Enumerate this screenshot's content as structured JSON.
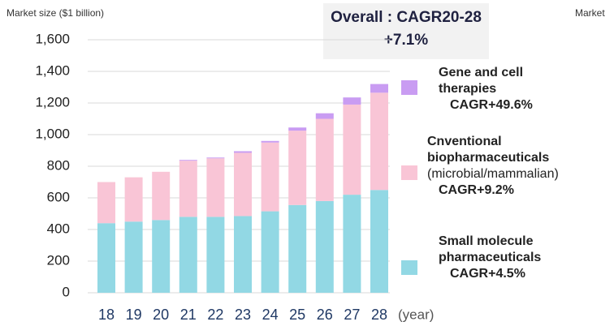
{
  "chart_data": {
    "type": "bar",
    "stacked": true,
    "title": "Overall : CAGR20-28",
    "subtitle": "+7.1%",
    "y_label": "Market size ($1 billion)",
    "x_suffix": "(year)",
    "side_text": "Market",
    "categories": [
      "18",
      "19",
      "20",
      "21",
      "22",
      "23",
      "24",
      "25",
      "26",
      "27",
      "28"
    ],
    "series": [
      {
        "name": "Small molecule pharmaceuticals",
        "cagr": "CAGR+4.5%",
        "color": "#92d8e4",
        "values": [
          440,
          450,
          460,
          480,
          480,
          485,
          515,
          555,
          580,
          620,
          650
        ]
      },
      {
        "name": "Cnventional biopharmaceuticals",
        "note": "(microbial/mammalian)",
        "cagr": "CAGR+9.2%",
        "color": "#f9c5d6",
        "values": [
          260,
          280,
          305,
          355,
          370,
          400,
          435,
          470,
          520,
          570,
          615
        ]
      },
      {
        "name": "Gene and cell therapies",
        "cagr": "CAGR+49.6%",
        "color": "#c99cf2",
        "values": [
          0,
          0,
          0,
          5,
          5,
          10,
          10,
          20,
          35,
          45,
          55
        ]
      }
    ],
    "ylim": [
      0,
      1600
    ],
    "yticks": [
      0,
      200,
      400,
      600,
      800,
      {
        "value": 1000,
        "label": "1,000"
      },
      {
        "value": 1200,
        "label": "1,200"
      },
      {
        "value": 1400,
        "label": "1,400"
      },
      {
        "value": 1600,
        "label": "1,600"
      }
    ],
    "grid": true
  }
}
